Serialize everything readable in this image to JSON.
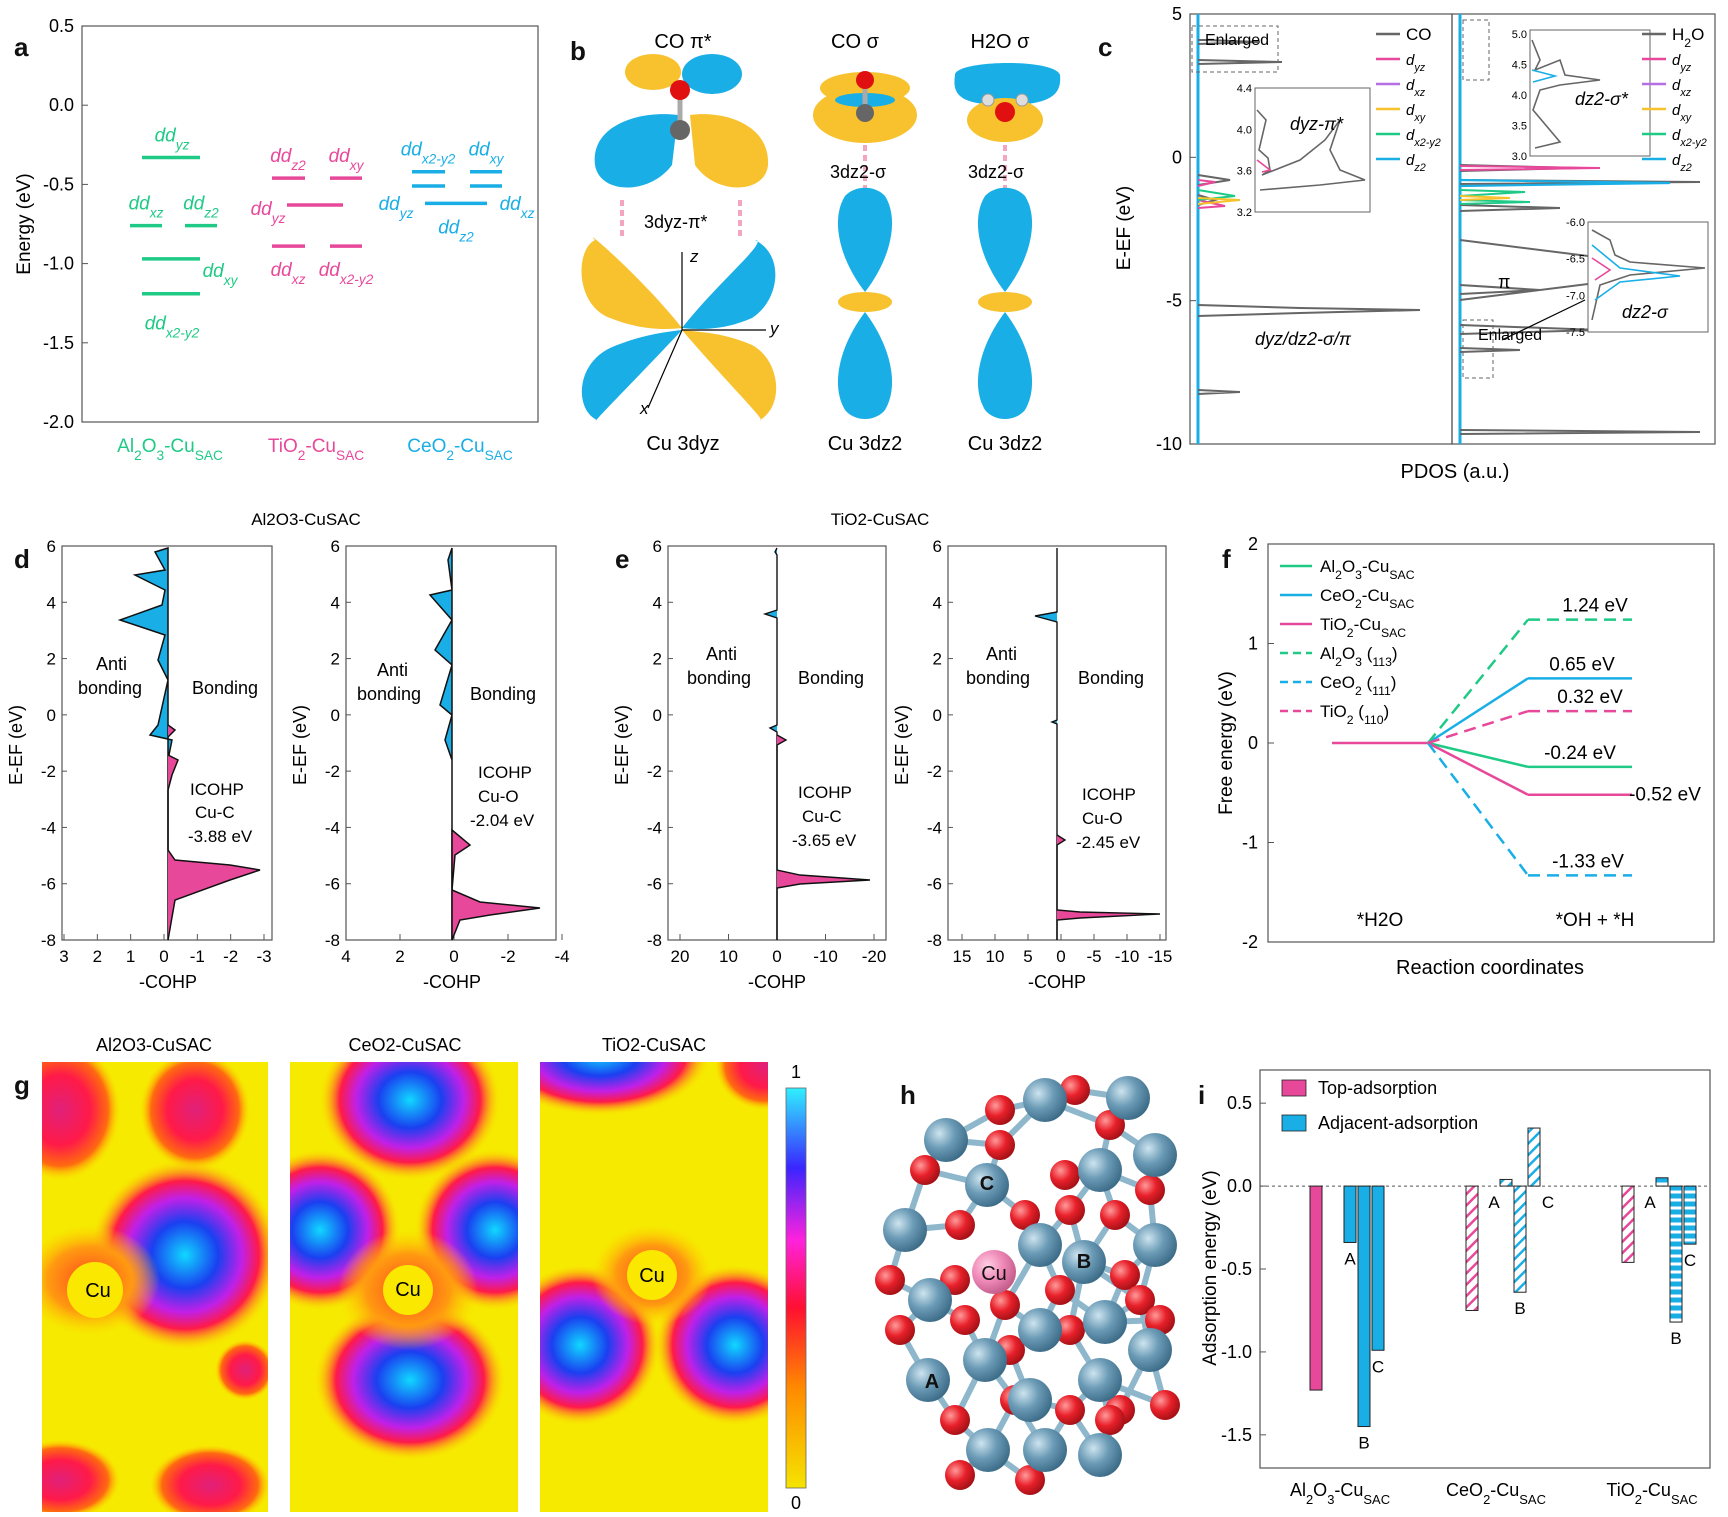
{
  "colors": {
    "green": "#1fca86",
    "pink": "#e8489a",
    "cyan": "#19aee6",
    "orange": "#f7c22e",
    "gray": "#666666",
    "purple": "#b36fe3"
  },
  "panel_letters": {
    "a": "a",
    "b": "b",
    "c": "c",
    "d": "d",
    "e": "e",
    "f": "f",
    "g": "g",
    "h": "h",
    "i": "i"
  },
  "chart_data": [
    {
      "id": "a",
      "type": "scatter",
      "title": "",
      "ylabel": "Energy (eV)",
      "ylim": [
        -2.0,
        0.5
      ],
      "yticks": [
        "0.5",
        "0.0",
        "-0.5",
        "-1.0",
        "-1.5",
        "-2.0"
      ],
      "xticks": [
        "Al2O3-CuSAC",
        "TiO2-CuSAC",
        "CeO2-CuSAC"
      ],
      "series": [
        {
          "name": "Al2O3-CuSAC",
          "levels": [
            {
              "orbital": "dyz",
              "energy": -0.33
            },
            {
              "orbital": "dxz",
              "energy": -0.76
            },
            {
              "orbital": "dz2",
              "energy": -0.76
            },
            {
              "orbital": "dxy",
              "energy": -0.97
            },
            {
              "orbital": "dx2-y2",
              "energy": -1.19
            }
          ]
        },
        {
          "name": "TiO2-CuSAC",
          "levels": [
            {
              "orbital": "dz2",
              "energy": -0.46
            },
            {
              "orbital": "dxy",
              "energy": -0.46
            },
            {
              "orbital": "dyz",
              "energy": -0.63
            },
            {
              "orbital": "dxz",
              "energy": -0.89
            },
            {
              "orbital": "dx2-y2",
              "energy": -0.89
            }
          ]
        },
        {
          "name": "CeO2-CuSAC",
          "levels": [
            {
              "orbital": "dx2-y2",
              "energy": -0.42
            },
            {
              "orbital": "dxy",
              "energy": -0.42
            },
            {
              "orbital": "dyz",
              "energy": -0.51
            },
            {
              "orbital": "dxz",
              "energy": -0.51
            },
            {
              "orbital": "dz2",
              "energy": -0.62
            }
          ]
        }
      ]
    },
    {
      "id": "c",
      "type": "line",
      "title": "PDOS",
      "xlabel": "PDOS (a.u.)",
      "ylabel": "E-EF (eV)",
      "ylim": [
        -10,
        5
      ],
      "yticks": [
        "5",
        "0",
        "-5",
        "-10"
      ],
      "left_legend": [
        "CO",
        "dyz",
        "dxz",
        "dxy",
        "dx2-y2",
        "dz2"
      ],
      "right_legend": [
        "H2O",
        "dyz",
        "dxz",
        "dxy",
        "dx2-y2",
        "dz2"
      ],
      "annotations": [
        "Enlarged",
        "dyz/dz2-σ/π",
        "π",
        "Enlarged",
        "dyz-π*",
        "dz2-σ*",
        "dz2-σ"
      ],
      "inset_left_yticks": [
        "4.4",
        "4.0",
        "3.6",
        "3.2"
      ],
      "inset_right_top_yticks": [
        "5.0",
        "4.5",
        "4.0",
        "3.5",
        "3.0"
      ],
      "inset_right_bottom_yticks": [
        "-6.0",
        "-6.5",
        "-7.0",
        "-7.5"
      ],
      "co_peaks_eV": [
        3.6,
        -1.0,
        -5.3,
        -8.2
      ],
      "h2o_peaks_eV": [
        4.2,
        -0.6,
        -4.8,
        -6.6,
        -9.7
      ]
    },
    {
      "id": "d",
      "type": "area",
      "title": "Al2O3-CuSAC",
      "xlabel": "-COHP",
      "ylabel": "E-EF (eV)",
      "ylim": [
        -8,
        6
      ],
      "left": {
        "pair": "Cu-C",
        "icohp": "-3.88 eV",
        "xticks": [
          "3",
          "2",
          "1",
          "0",
          "-1",
          "-2",
          "-3"
        ]
      },
      "right": {
        "pair": "Cu-O",
        "icohp": "-2.04 eV",
        "xticks": [
          "4",
          "2",
          "0",
          "-2",
          "-4"
        ]
      }
    },
    {
      "id": "e",
      "type": "area",
      "title": "TiO2-CuSAC",
      "xlabel": "-COHP",
      "ylabel": "E-EF (eV)",
      "ylim": [
        -8,
        6
      ],
      "left": {
        "pair": "Cu-C",
        "icohp": "-3.65 eV",
        "xticks": [
          "20",
          "10",
          "0",
          "-10",
          "-20"
        ]
      },
      "right": {
        "pair": "Cu-O",
        "icohp": "-2.45 eV",
        "xticks": [
          "15",
          "10",
          "5",
          "0",
          "-5",
          "-10",
          "-15"
        ]
      }
    },
    {
      "id": "f",
      "type": "line",
      "xlabel": "Reaction coordinates",
      "ylabel": "Free energy (eV)",
      "ylim": [
        -2,
        2
      ],
      "yticks": [
        "2",
        "1",
        "0",
        "-1",
        "-2"
      ],
      "categories": [
        "*H2O",
        "*OH + *H"
      ],
      "series": [
        {
          "name": "Al2O3-CuSAC",
          "values": [
            0,
            -0.24
          ],
          "label": "-0.24 eV",
          "dashed": false
        },
        {
          "name": "CeO2-CuSAC",
          "values": [
            0,
            0.65
          ],
          "label": "0.65 eV",
          "dashed": false
        },
        {
          "name": "TiO2-CuSAC",
          "values": [
            0,
            -0.52
          ],
          "label": "-0.52 eV",
          "dashed": false
        },
        {
          "name": "Al2O3 (113)",
          "values": [
            0,
            1.24
          ],
          "label": "1.24 eV",
          "dashed": true
        },
        {
          "name": "CeO2 (111)",
          "values": [
            0,
            -1.33
          ],
          "label": "-1.33 eV",
          "dashed": true
        },
        {
          "name": "TiO2 (110)",
          "values": [
            0,
            0.32
          ],
          "label": "0.32 eV",
          "dashed": true
        }
      ]
    },
    {
      "id": "i",
      "type": "bar",
      "ylabel": "Adsorption energy (eV)",
      "ylim": [
        -1.7,
        0.7
      ],
      "yticks": [
        "0.5",
        "0.0",
        "-0.5",
        "-1.0",
        "-1.5"
      ],
      "categories": [
        "Al2O3-CuSAC",
        "CeO2-CuSAC",
        "TiO2-CuSAC"
      ],
      "legend": [
        "Top-adsorption",
        "Adjacent-adsorption"
      ],
      "series": [
        {
          "name": "Top-adsorption",
          "values": [
            -1.23,
            -0.75,
            -0.46
          ]
        },
        {
          "name": "Adjacent-adsorption A",
          "values": [
            -0.34,
            0.04,
            0.05
          ]
        },
        {
          "name": "Adjacent-adsorption B",
          "values": [
            -1.45,
            -0.64,
            -0.82
          ]
        },
        {
          "name": "Adjacent-adsorption C",
          "values": [
            -0.99,
            0.35,
            -0.35
          ]
        }
      ],
      "site_labels": [
        "A",
        "B",
        "C"
      ]
    }
  ],
  "panel_b": {
    "titles": [
      "CO π*",
      "CO σ",
      "H2O σ"
    ],
    "captions": [
      "Cu 3dyz",
      "Cu 3dz2",
      "Cu 3dz2"
    ],
    "bonds": [
      "3dyz-π*",
      "3dz2-σ",
      "3dz2-σ"
    ],
    "axes": [
      "z",
      "y",
      "x"
    ]
  },
  "panel_g": {
    "titles": [
      "Al2O3-CuSAC",
      "CeO2-CuSAC",
      "TiO2-CuSAC"
    ],
    "site_label": "Cu",
    "colorbar": {
      "max": "1",
      "min": "0"
    }
  },
  "panel_h": {
    "labels": [
      "C",
      "Cu",
      "B",
      "A"
    ]
  },
  "text": {
    "a_x1": "Al2O3-CuSAC",
    "d_anti": "Anti",
    "d_bonding_word": "bonding",
    "d_bonding": "Bonding",
    "icohp": "ICOHP",
    "f_reactant": "*H2O",
    "f_product": "*OH + *H"
  }
}
